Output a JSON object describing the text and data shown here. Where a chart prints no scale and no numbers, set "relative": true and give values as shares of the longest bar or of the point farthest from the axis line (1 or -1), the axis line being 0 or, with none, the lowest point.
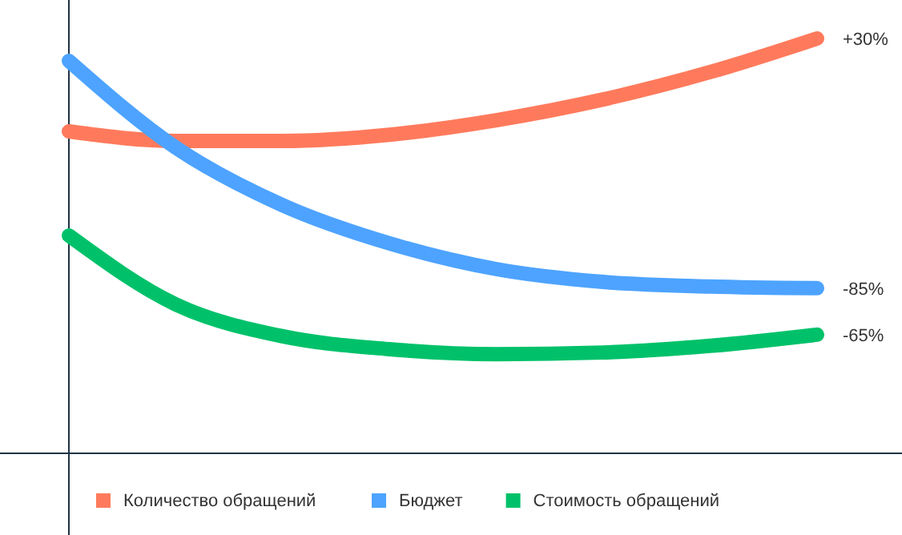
{
  "chart_data": {
    "type": "line",
    "relative": true,
    "legend": "bottom",
    "categories": [
      null,
      null,
      null,
      null,
      null,
      null,
      null,
      null
    ],
    "series": [
      {
        "name": "Количество обращений",
        "color": "#ff7a5c",
        "values": [
          0.776,
          0.753,
          0.753,
          0.768,
          0.803,
          0.853,
          0.919,
          1
        ]
      },
      {
        "name": "Бюджет",
        "color": "#4da3ff",
        "values": [
          0.946,
          0.737,
          0.598,
          0.506,
          0.444,
          0.413,
          0.402,
          0.398
        ]
      },
      {
        "name": "Стоимость обращений",
        "color": "#00c16a",
        "values": [
          0.525,
          0.359,
          0.282,
          0.251,
          0.239,
          0.243,
          0.259,
          0.286
        ]
      }
    ],
    "annotations": [
      "+30%",
      "-85%",
      "-65%"
    ]
  }
}
